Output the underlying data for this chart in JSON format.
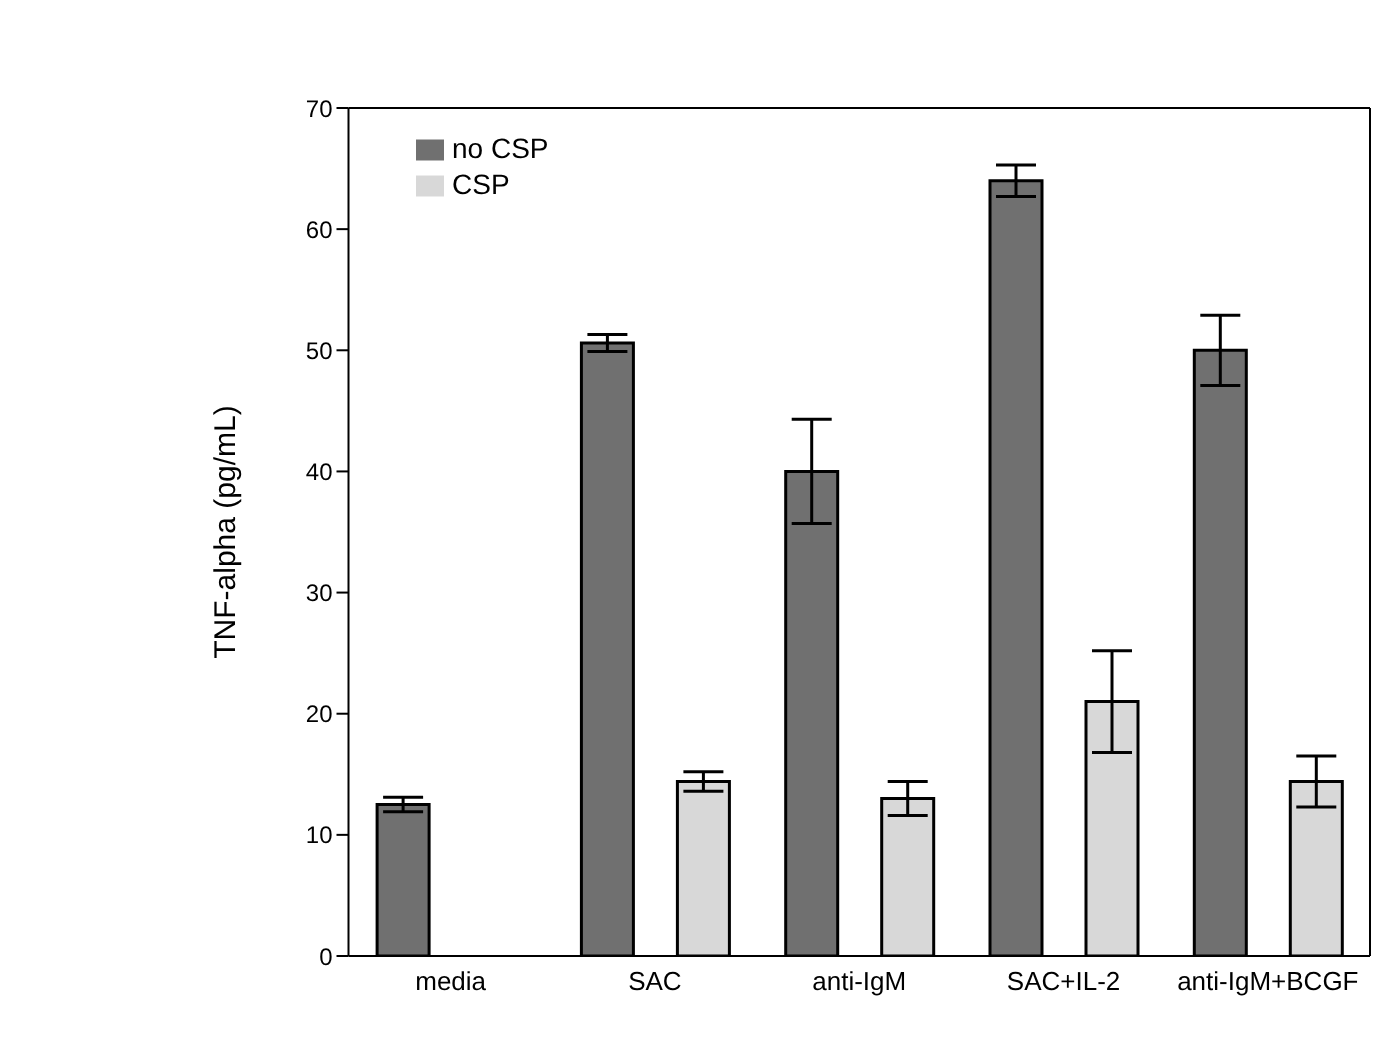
{
  "chart_data": {
    "type": "bar",
    "ylabel": "TNF-alpha (pg/mL)",
    "categories": [
      "media",
      "SAC",
      "anti-IgM",
      "SAC+IL-2",
      "anti-IgM+BCGF"
    ],
    "series": [
      {
        "name": "no CSP",
        "color": "#707070",
        "values": [
          12.5,
          50.6,
          40,
          64,
          50
        ],
        "errors": [
          0.6,
          0.7,
          4.3,
          1.3,
          2.9
        ]
      },
      {
        "name": "CSP",
        "color": "#d8d8d8",
        "values": [
          null,
          14.4,
          13,
          21,
          14.4
        ],
        "errors": [
          null,
          0.8,
          1.4,
          4.2,
          2.1
        ]
      }
    ],
    "ylim": [
      0,
      70
    ],
    "yticks": [
      0,
      10,
      20,
      30,
      40,
      50,
      60,
      70
    ],
    "grid": false,
    "legend": "top left"
  }
}
